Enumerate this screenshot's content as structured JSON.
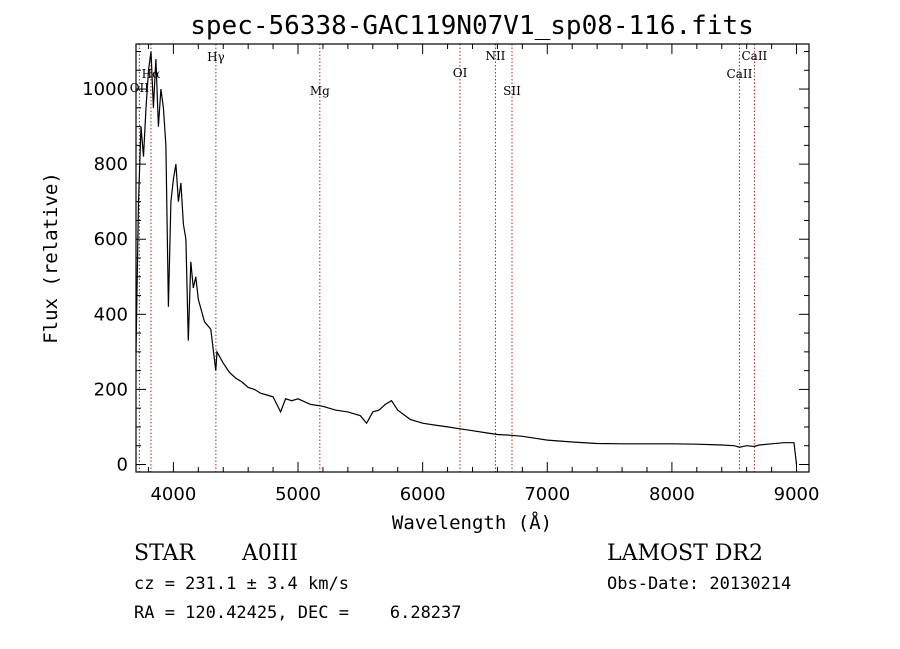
{
  "chart_data": {
    "type": "line",
    "title": "spec-56338-GAC119N07V1_sp08-116.fits",
    "xlabel": "Wavelength (Å)",
    "ylabel": "Flux (relative)",
    "xlim": [
      3700,
      9100
    ],
    "ylim": [
      -20,
      1120
    ],
    "x_ticks": [
      4000,
      5000,
      6000,
      7000,
      8000,
      9000
    ],
    "x_tick_labels": [
      "4000",
      "5000",
      "6000",
      "7000",
      "8000",
      "9000"
    ],
    "y_ticks": [
      0,
      200,
      400,
      600,
      800,
      1000
    ],
    "y_tick_labels": [
      "0",
      "200",
      "400",
      "600",
      "800",
      "1000"
    ],
    "grid": false,
    "spectral_lines": [
      {
        "label": "OII",
        "wavelength": 3727
      },
      {
        "label": "Hα",
        "wavelength": 3820
      },
      {
        "label": "Hγ",
        "wavelength": 4341
      },
      {
        "label": "Mg",
        "wavelength": 5175
      },
      {
        "label": "OI",
        "wavelength": 6300
      },
      {
        "label": "NII",
        "wavelength": 6584
      },
      {
        "label": "SII",
        "wavelength": 6717
      },
      {
        "label": "CaII",
        "wavelength": 8542
      },
      {
        "label": "CaII",
        "wavelength": 8662
      }
    ],
    "series": [
      {
        "x": [
          3700,
          3720,
          3740,
          3760,
          3780,
          3800,
          3820,
          3840,
          3860,
          3880,
          3900,
          3920,
          3940,
          3960,
          3980,
          4000,
          4020,
          4040,
          4060,
          4080,
          4100,
          4120,
          4140,
          4160,
          4180,
          4200,
          4250,
          4300,
          4340,
          4350,
          4400,
          4450,
          4500,
          4550,
          4600,
          4650,
          4700,
          4750,
          4800,
          4860,
          4900,
          4950,
          5000,
          5100,
          5200,
          5300,
          5400,
          5500,
          5550,
          5600,
          5650,
          5700,
          5750,
          5800,
          5900,
          6000,
          6100,
          6200,
          6300,
          6400,
          6500,
          6600,
          6700,
          6800,
          6900,
          7000,
          7200,
          7400,
          7600,
          7800,
          8000,
          8200,
          8400,
          8500,
          8542,
          8600,
          8662,
          8700,
          8800,
          8900,
          8980,
          9000
        ],
        "y": [
          300,
          700,
          900,
          820,
          950,
          1050,
          1100,
          950,
          1080,
          900,
          1000,
          950,
          850,
          420,
          700,
          760,
          800,
          700,
          750,
          640,
          600,
          330,
          540,
          470,
          500,
          440,
          380,
          360,
          250,
          300,
          270,
          245,
          230,
          220,
          205,
          200,
          190,
          185,
          180,
          140,
          175,
          170,
          175,
          160,
          155,
          145,
          140,
          130,
          110,
          140,
          145,
          160,
          170,
          145,
          120,
          110,
          105,
          100,
          95,
          90,
          85,
          80,
          78,
          75,
          70,
          65,
          60,
          56,
          55,
          55,
          55,
          54,
          52,
          50,
          46,
          50,
          48,
          52,
          55,
          58,
          58,
          0
        ]
      }
    ]
  },
  "footer": {
    "object_type": "STAR",
    "subclass": "A0III",
    "survey": "LAMOST DR2",
    "redshift": "cz = 231.1 ± 3.4 km/s",
    "obs_date": "Obs-Date: 20130214",
    "coords": "RA = 120.42425, DEC =    6.28237"
  },
  "colors": {
    "spectrum": "#000000",
    "line_markers": "#b22222",
    "axes": "#000000"
  }
}
